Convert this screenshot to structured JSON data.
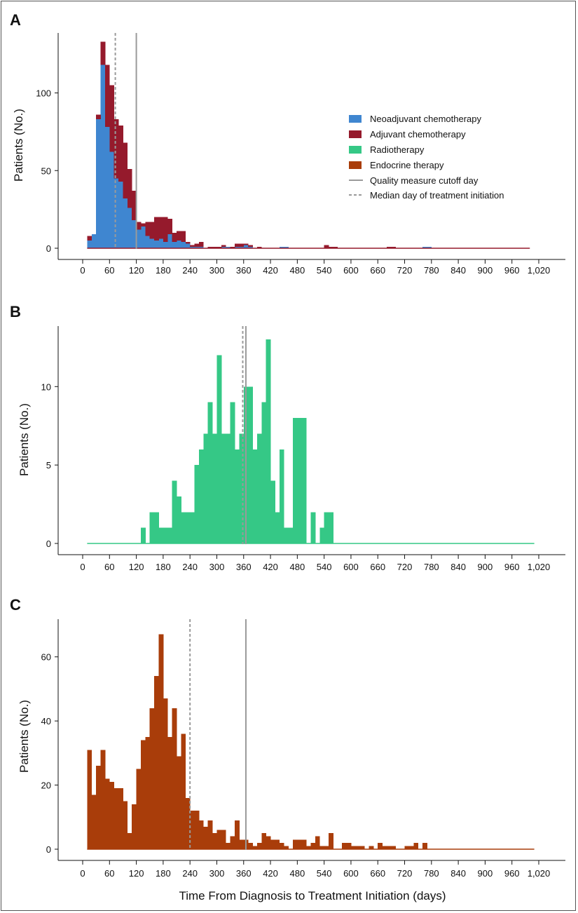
{
  "figure": {
    "x_axis_label": "Time From Diagnosis to Treatment Initiation (days)",
    "x_ticks": [
      "0",
      "60",
      "120",
      "180",
      "240",
      "300",
      "360",
      "420",
      "480",
      "540",
      "600",
      "660",
      "720",
      "780",
      "840",
      "900",
      "960",
      "1,020"
    ],
    "colors": {
      "neoadjuvant": "#3f86d0",
      "adjuvant": "#951a2c",
      "radiotherapy": "#35c886",
      "endocrine": "#a93d0a",
      "cutoff": "#9a9a9a",
      "median": "#9a9a9a"
    }
  },
  "chart_data": [
    {
      "panel": "A",
      "type": "bar",
      "stacked": true,
      "ylabel": "Patients (No.)",
      "xlim": [
        0,
        1020
      ],
      "ylim": [
        0,
        135
      ],
      "yticks": [
        0,
        50,
        100
      ],
      "bin_width": 10,
      "bin_starts": [
        10,
        20,
        30,
        40,
        50,
        60,
        70,
        80,
        90,
        100,
        110,
        120,
        130,
        140,
        150,
        160,
        170,
        180,
        190,
        200,
        210,
        220,
        230,
        240,
        250,
        260,
        270,
        280,
        290,
        300,
        310,
        320,
        330,
        340,
        350,
        360,
        370,
        380,
        390,
        440,
        450,
        540,
        550,
        560,
        680,
        690,
        760,
        770
      ],
      "series": [
        {
          "name": "Neoadjuvant chemotherapy",
          "color_key": "neoadjuvant",
          "values": [
            5,
            9,
            83,
            118,
            78,
            62,
            45,
            43,
            32,
            26,
            18,
            12,
            14,
            8,
            6,
            5,
            6,
            4,
            9,
            4,
            5,
            4,
            3,
            1,
            1,
            1,
            0,
            0,
            0,
            0,
            1,
            1,
            0,
            1,
            1,
            2,
            1,
            0,
            0,
            1,
            1,
            0,
            0,
            0,
            0,
            0,
            1,
            1
          ]
        },
        {
          "name": "Adjuvant chemotherapy",
          "color_key": "adjuvant",
          "values": [
            3,
            0,
            3,
            15,
            40,
            43,
            38,
            36,
            36,
            25,
            19,
            5,
            2,
            9,
            11,
            15,
            14,
            16,
            10,
            6,
            6,
            7,
            1,
            1,
            2,
            3,
            0,
            1,
            1,
            1,
            1,
            0,
            1,
            2,
            2,
            1,
            1,
            0,
            1,
            0,
            0,
            2,
            1,
            1,
            1,
            1,
            0,
            0
          ]
        }
      ],
      "legend": {
        "placement": "right",
        "entries": [
          {
            "label": "Neoadjuvant chemotherapy",
            "kind": "patch",
            "color_key": "neoadjuvant"
          },
          {
            "label": "Adjuvant chemotherapy",
            "kind": "patch",
            "color_key": "adjuvant"
          },
          {
            "label": "Radiotherapy",
            "kind": "patch",
            "color_key": "radiotherapy"
          },
          {
            "label": "Endocrine therapy",
            "kind": "patch",
            "color_key": "endocrine"
          },
          {
            "label": "Quality measure cutoff day",
            "kind": "solid"
          },
          {
            "label": "Median day of treatment initiation",
            "kind": "dashed"
          }
        ]
      },
      "baseline_end": 1000,
      "cutoff_day": 120,
      "median_day": 73
    },
    {
      "panel": "B",
      "type": "bar",
      "ylabel": "Patients (No.)",
      "xlim": [
        0,
        1020
      ],
      "ylim": [
        0,
        13.5
      ],
      "yticks": [
        0,
        5,
        10
      ],
      "bin_width": 10,
      "bin_starts": [
        130,
        150,
        160,
        170,
        180,
        190,
        200,
        210,
        220,
        230,
        240,
        250,
        260,
        270,
        280,
        290,
        300,
        310,
        320,
        330,
        340,
        350,
        360,
        370,
        380,
        390,
        400,
        410,
        420,
        430,
        440,
        450,
        460,
        470,
        480,
        490,
        500,
        510,
        520,
        530,
        540,
        550
      ],
      "series": [
        {
          "name": "Radiotherapy",
          "color_key": "radiotherapy",
          "values": [
            1,
            2,
            2,
            1,
            1,
            1,
            4,
            3,
            2,
            2,
            2,
            5,
            6,
            7,
            9,
            7,
            12,
            7,
            7,
            9,
            6,
            7,
            10,
            10,
            6,
            7,
            9,
            13,
            4,
            2,
            6,
            1,
            1,
            8,
            8,
            8,
            0,
            2,
            0,
            1,
            2,
            2
          ]
        }
      ],
      "baseline_start": 10,
      "baseline_end": 1010,
      "cutoff_day": 365,
      "median_day": 358
    },
    {
      "panel": "C",
      "type": "bar",
      "ylabel": "Patients (No.)",
      "xlabel": "Time From Diagnosis to Treatment Initiation (days)",
      "xlim": [
        0,
        1020
      ],
      "ylim": [
        0,
        70
      ],
      "yticks": [
        0,
        20,
        40,
        60
      ],
      "bin_width": 10,
      "bin_starts": [
        10,
        20,
        30,
        40,
        50,
        60,
        70,
        80,
        90,
        100,
        110,
        120,
        130,
        140,
        150,
        160,
        170,
        180,
        190,
        200,
        210,
        220,
        230,
        240,
        250,
        260,
        270,
        280,
        290,
        300,
        310,
        320,
        330,
        340,
        350,
        360,
        370,
        380,
        390,
        400,
        410,
        420,
        430,
        440,
        450,
        460,
        470,
        480,
        490,
        500,
        510,
        520,
        530,
        540,
        550,
        560,
        570,
        580,
        590,
        600,
        610,
        620,
        630,
        640,
        650,
        660,
        670,
        680,
        690,
        700,
        710,
        720,
        730,
        740,
        750,
        760,
        770,
        780,
        790,
        800,
        810,
        820,
        830,
        840,
        850,
        860,
        870,
        880,
        890,
        900,
        910,
        920,
        930,
        940,
        950,
        960,
        970,
        980,
        990,
        1000
      ],
      "series": [
        {
          "name": "Endocrine therapy",
          "color_key": "endocrine",
          "values": [
            31,
            17,
            26,
            31,
            22,
            21,
            19,
            19,
            15,
            5,
            14,
            25,
            34,
            35,
            44,
            54,
            67,
            47,
            35,
            44,
            29,
            36,
            16,
            12,
            12,
            9,
            7,
            9,
            5,
            6,
            6,
            2,
            4,
            9,
            3,
            3,
            2,
            1,
            2,
            5,
            4,
            3,
            3,
            2,
            1,
            0,
            3,
            3,
            3,
            1,
            2,
            4,
            1,
            1,
            5,
            0,
            0,
            2,
            2,
            1,
            1,
            1,
            0,
            1,
            0,
            2,
            1,
            1,
            1,
            0,
            0,
            1,
            1,
            2,
            0,
            2,
            0,
            0,
            0,
            0,
            0,
            0,
            0,
            0,
            0,
            0,
            0,
            0,
            0,
            0,
            0,
            0,
            0,
            0,
            0,
            0,
            0,
            0,
            0,
            0
          ]
        }
      ],
      "baseline_end": 1010,
      "cutoff_day": 365,
      "median_day": 240
    }
  ]
}
